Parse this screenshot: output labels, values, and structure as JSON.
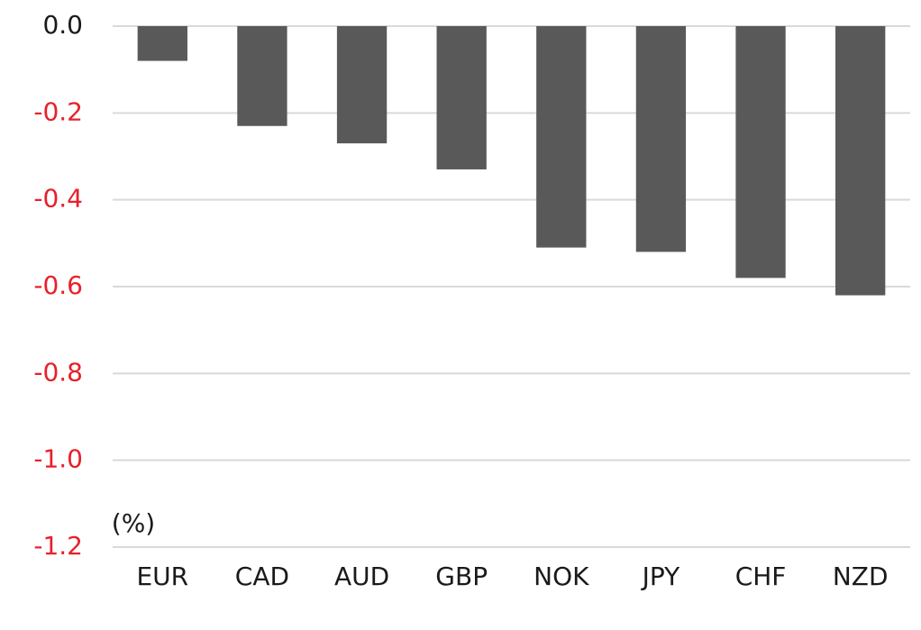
{
  "chart_data": {
    "type": "bar",
    "y_label": "(%)",
    "categories": [
      "EUR",
      "CAD",
      "AUD",
      "GBP",
      "NOK",
      "JPY",
      "CHF",
      "NZD"
    ],
    "values": [
      -0.08,
      -0.23,
      -0.27,
      -0.33,
      -0.51,
      -0.52,
      -0.58,
      -0.62
    ],
    "color": "#595959",
    "ylim": [
      -1.2,
      0
    ],
    "yticks": [
      {
        "value": 0,
        "label": "0.0"
      },
      -0.2,
      -0.4,
      -0.6,
      -0.8,
      {
        "value": -1,
        "label": "-1.0"
      },
      -1.2
    ],
    "negative_tick_color": "#e8202a",
    "grid": true
  }
}
